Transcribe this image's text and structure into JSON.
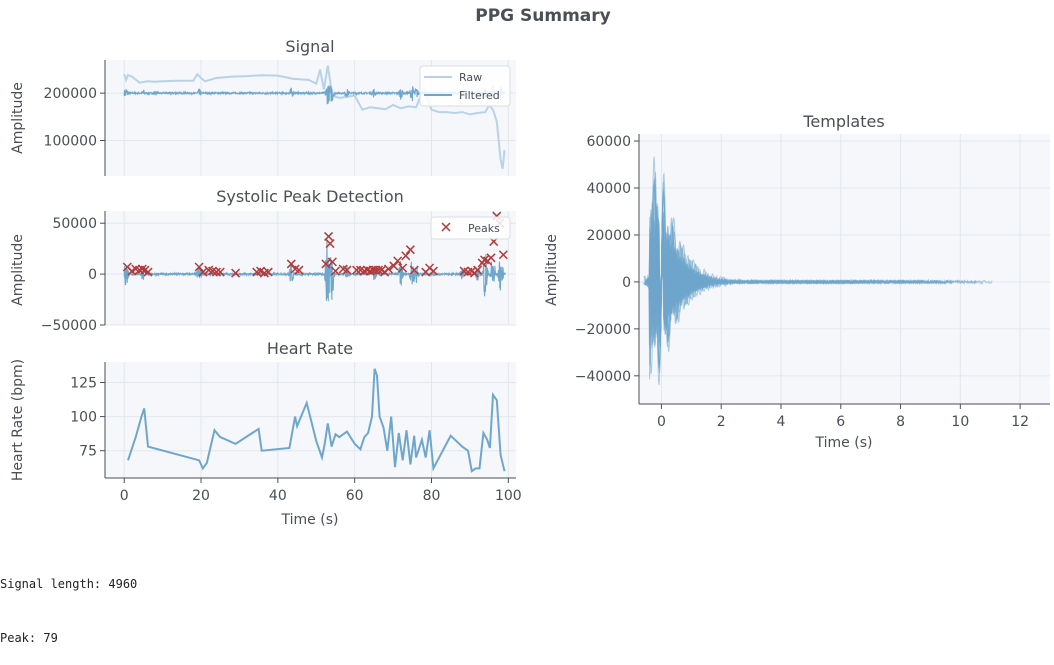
{
  "figure_title": "PPG Summary",
  "colors": {
    "filtered": "#6fa6cc",
    "raw": "#b8d3e7",
    "peaks": "#b23a3a",
    "axes_bg": "#f5f7fa",
    "grid": "#e3e7ec",
    "text": "#4a4f55"
  },
  "console": {
    "signal_length_line": "Signal length: 4960",
    "peak_line": "Peak: 79"
  },
  "chart_data": [
    {
      "id": "signal",
      "type": "line",
      "title": "Signal",
      "ylabel": "Amplitude",
      "xlabel": "",
      "xlim": [
        -5,
        102
      ],
      "ylim": [
        25000,
        270000
      ],
      "yticks": [
        100000,
        200000
      ],
      "yticklabels": [
        "100000",
        "200000"
      ],
      "grid": true,
      "legend": "top-right",
      "series": [
        {
          "name": "Raw",
          "x": [
            0,
            0.5,
            1,
            2,
            4,
            6,
            8,
            10,
            14,
            18,
            19,
            20,
            21,
            24,
            28,
            32,
            36,
            40,
            44,
            48,
            50,
            51,
            52,
            53,
            54,
            55,
            56,
            58,
            60,
            62,
            64,
            66,
            68,
            70,
            72,
            74,
            76,
            78,
            80,
            82,
            84,
            86,
            88,
            90,
            92,
            94,
            95,
            96,
            97,
            97.5,
            98,
            98.5,
            99
          ],
          "y": [
            240000,
            228000,
            238000,
            235000,
            222000,
            225000,
            224000,
            225000,
            226000,
            226000,
            240000,
            232000,
            225000,
            232000,
            235000,
            236000,
            238000,
            237000,
            230000,
            228000,
            220000,
            250000,
            208000,
            258000,
            205000,
            192000,
            190000,
            192000,
            195000,
            165000,
            170000,
            168000,
            166000,
            175000,
            168000,
            172000,
            170000,
            210000,
            165000,
            160000,
            160000,
            158000,
            160000,
            155000,
            158000,
            160000,
            175000,
            165000,
            140000,
            100000,
            60000,
            40000,
            80000
          ]
        },
        {
          "name": "Filtered",
          "baseline": 200000,
          "bursts": [
            {
              "x": 0.5,
              "amp": 14000
            },
            {
              "x": 5,
              "amp": 9000
            },
            {
              "x": 19.5,
              "amp": 10000
            },
            {
              "x": 43.5,
              "amp": 12000
            },
            {
              "x": 53,
              "amp": 28000
            },
            {
              "x": 54,
              "amp": 24000
            },
            {
              "x": 58,
              "amp": 10000
            },
            {
              "x": 65,
              "amp": 11000
            },
            {
              "x": 72,
              "amp": 14000
            },
            {
              "x": 75,
              "amp": 18000
            },
            {
              "x": 76,
              "amp": 14000
            },
            {
              "x": 88,
              "amp": 8000
            },
            {
              "x": 92,
              "amp": 9000
            },
            {
              "x": 94,
              "amp": 12000
            },
            {
              "x": 96,
              "amp": 16000
            },
            {
              "x": 98,
              "amp": 15000
            }
          ]
        }
      ]
    },
    {
      "id": "peaks",
      "type": "line",
      "title": "Systolic Peak Detection",
      "ylabel": "Amplitude",
      "xlabel": "",
      "xlim": [
        -5,
        102
      ],
      "ylim": [
        -50000,
        62000
      ],
      "yticks": [
        -50000,
        0,
        50000
      ],
      "yticklabels": [
        "−50000",
        "0",
        "50000"
      ],
      "grid": true,
      "legend": "top-right",
      "series": [
        {
          "name": "",
          "baseline": 0,
          "bursts": [
            {
              "x": 0.5,
              "amp": 14000
            },
            {
              "x": 5,
              "amp": 8000
            },
            {
              "x": 19.5,
              "amp": 10000
            },
            {
              "x": 43.5,
              "amp": 12000
            },
            {
              "x": 53,
              "amp": 45000
            },
            {
              "x": 54,
              "amp": 30000
            },
            {
              "x": 58,
              "amp": 8000
            },
            {
              "x": 65,
              "amp": 9000
            },
            {
              "x": 72,
              "amp": 14000
            },
            {
              "x": 75,
              "amp": 17000
            },
            {
              "x": 76,
              "amp": 12000
            },
            {
              "x": 88,
              "amp": 6000
            },
            {
              "x": 92,
              "amp": 9000
            },
            {
              "x": 94,
              "amp": 30000
            },
            {
              "x": 96,
              "amp": 25000
            },
            {
              "x": 98,
              "amp": 20000
            }
          ]
        }
      ],
      "peaks": {
        "name": "Peaks",
        "x": [
          0.8,
          2,
          3,
          4,
          4.7,
          5.4,
          6.2,
          19.5,
          20.5,
          22,
          23,
          24,
          25,
          29,
          34.5,
          35.5,
          36.5,
          37.5,
          43.5,
          44.5,
          45.5,
          52.5,
          53.2,
          53.6,
          54.2,
          55,
          57,
          58,
          60.5,
          61.5,
          62.5,
          63.3,
          64,
          64.8,
          65.5,
          66.2,
          67,
          67.8,
          68.8,
          70.2,
          71.2,
          72.5,
          73.3,
          74.5,
          75.5,
          78.5,
          79.5,
          80.5,
          88.5,
          89.5,
          90.5,
          91.2,
          92,
          93.2,
          93.8,
          94.6,
          95.5,
          96.2,
          97,
          97.8,
          98.7
        ],
        "y": [
          7000,
          3000,
          5000,
          4000,
          5000,
          4000,
          2000,
          7000,
          2000,
          4000,
          3000,
          2000,
          2000,
          1000,
          2000,
          3000,
          1000,
          2000,
          10000,
          5000,
          4000,
          10000,
          37000,
          30000,
          12000,
          3000,
          5000,
          4000,
          4000,
          4000,
          3000,
          4000,
          3000,
          4000,
          4000,
          4000,
          4000,
          2000,
          5000,
          8000,
          13000,
          6000,
          18000,
          24000,
          4000,
          2000,
          6000,
          3000,
          3000,
          2000,
          3000,
          1000,
          4000,
          11000,
          14000,
          13000,
          16000,
          32000,
          57000,
          50000,
          19000
        ]
      }
    },
    {
      "id": "heart_rate",
      "type": "line",
      "title": "Heart Rate",
      "ylabel": "Heart Rate (bpm)",
      "xlabel": "Time (s)",
      "xlim": [
        -5,
        102
      ],
      "ylim": [
        55,
        140
      ],
      "xticks": [
        0,
        20,
        40,
        60,
        80,
        100
      ],
      "yticks": [
        75,
        100,
        125
      ],
      "grid": true,
      "series": [
        {
          "name": "",
          "x": [
            1,
            3,
            4.5,
            5.2,
            6.2,
            19.5,
            20.5,
            21.5,
            23.5,
            25,
            29,
            35,
            35.8,
            43,
            44.5,
            45,
            47.5,
            50,
            51.5,
            52.2,
            53,
            54,
            55,
            56,
            58,
            60,
            61.5,
            62.5,
            63.5,
            64.5,
            65.2,
            65.8,
            66.5,
            67.5,
            68.5,
            69.5,
            70.5,
            71.5,
            72.5,
            73.5,
            74.5,
            75.5,
            76,
            77.5,
            78.5,
            79.5,
            80.5,
            85,
            88,
            89.5,
            90.5,
            91.5,
            92.5,
            93.5,
            94.5,
            95.2,
            96,
            97,
            98,
            99
          ],
          "y": [
            68,
            85,
            100,
            106,
            78,
            68,
            62,
            66,
            90,
            85,
            80,
            91,
            75,
            77,
            100,
            93,
            110,
            82,
            70,
            80,
            95,
            78,
            87,
            85,
            89,
            80,
            76,
            85,
            88,
            100,
            135,
            130,
            100,
            92,
            75,
            100,
            63,
            88,
            68,
            90,
            65,
            86,
            70,
            83,
            70,
            90,
            62,
            86,
            78,
            75,
            60,
            62,
            62,
            88,
            83,
            77,
            116,
            112,
            72,
            60
          ]
        }
      ]
    },
    {
      "id": "templates",
      "type": "line",
      "title": "Templates",
      "ylabel": "Amplitude",
      "xlabel": "Time (s)",
      "xlim": [
        -0.75,
        13
      ],
      "ylim": [
        -52000,
        63000
      ],
      "xticks": [
        0,
        2,
        4,
        6,
        8,
        10,
        12
      ],
      "yticks": [
        -40000,
        -20000,
        0,
        20000,
        40000,
        60000
      ],
      "yticklabels": [
        "−40000",
        "−20000",
        "0",
        "20000",
        "40000",
        "60000"
      ],
      "grid": true,
      "series": [
        {
          "name": "",
          "x_start": -0.6,
          "x_end": 12.2,
          "peak_x": 0,
          "peak_amp": 57000,
          "trough_amp": -47000,
          "template_count": 79
        }
      ]
    }
  ]
}
